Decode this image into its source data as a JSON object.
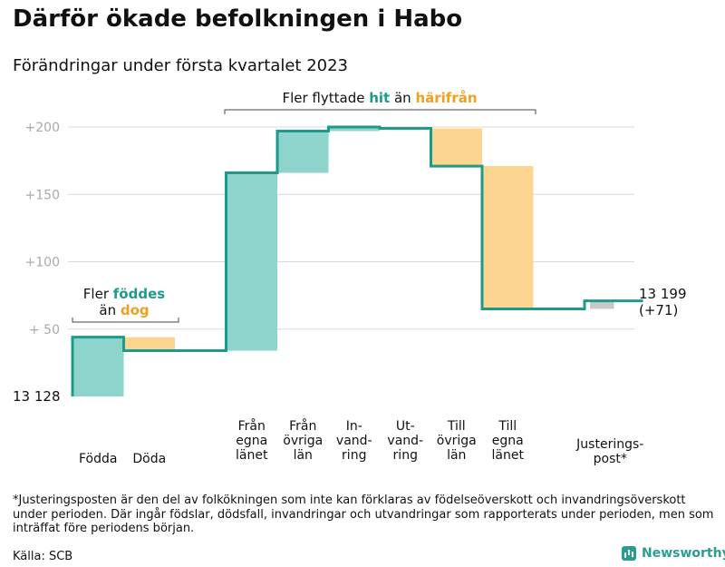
{
  "title": "Därför ökade befolkningen i Habo",
  "subtitle": "Förändringar under första kvartalet 2023",
  "footnote": "*Justeringsposten är den del av folkökningen som inte kan förklaras av födelseöverskott och invandringsöverskott under perioden. Där ingår födslar, dödsfall, invandringar och utvandringar som rapporterats under perioden, men som inträffat före periodens början.",
  "source": "Källa: SCB",
  "brand": "Newsworthy",
  "colors": {
    "positive": "#8dd5cc",
    "negative": "#fcd690",
    "adjust": "#c8c8c8",
    "line": "#1f9a8a",
    "teal_text": "#1f9a8a",
    "orange_text": "#f0a020",
    "grid": "#d9d9d9",
    "tick": "#aaaaaa"
  },
  "chart_data": {
    "type": "waterfall",
    "start_label": "13 128",
    "end_label": "13 199",
    "end_change_label": "(+71)",
    "yticks": [
      {
        "value": 50,
        "label": "+ 50"
      },
      {
        "value": 100,
        "label": "+100"
      },
      {
        "value": 150,
        "label": "+150"
      },
      {
        "value": 200,
        "label": "+200"
      }
    ],
    "ylim": [
      0,
      205
    ],
    "steps": [
      {
        "label": [
          "Födda"
        ],
        "value": 44,
        "kind": "positive"
      },
      {
        "label": [
          "Döda"
        ],
        "value": -10,
        "kind": "negative"
      },
      {
        "label": [],
        "value": 0,
        "kind": "spacer"
      },
      {
        "label": [
          "Från",
          "egna",
          "länet"
        ],
        "value": 132,
        "kind": "positive"
      },
      {
        "label": [
          "Från",
          "övriga",
          "län"
        ],
        "value": 31,
        "kind": "positive"
      },
      {
        "label": [
          "In-",
          "vand-",
          "ring"
        ],
        "value": 3,
        "kind": "positive"
      },
      {
        "label": [
          "Ut-",
          "vand-",
          "ring"
        ],
        "value": -1,
        "kind": "negative"
      },
      {
        "label": [
          "Till",
          "övriga",
          "län"
        ],
        "value": -28,
        "kind": "negative"
      },
      {
        "label": [
          "Till",
          "egna",
          "länet"
        ],
        "value": -106,
        "kind": "negative"
      },
      {
        "label": [],
        "value": 0,
        "kind": "spacer"
      },
      {
        "label": [
          "Justerings-",
          "post*"
        ],
        "value": 6,
        "kind": "adjust"
      }
    ],
    "annotations": {
      "births": {
        "line1_prefix": "Fler ",
        "line1_highlight": "föddes",
        "line2_prefix": "än ",
        "line2_highlight": "dog"
      },
      "migration": {
        "prefix": "Fler flyttade ",
        "highlight1": "hit",
        "middle": " än ",
        "highlight2": "härifrån"
      }
    }
  }
}
